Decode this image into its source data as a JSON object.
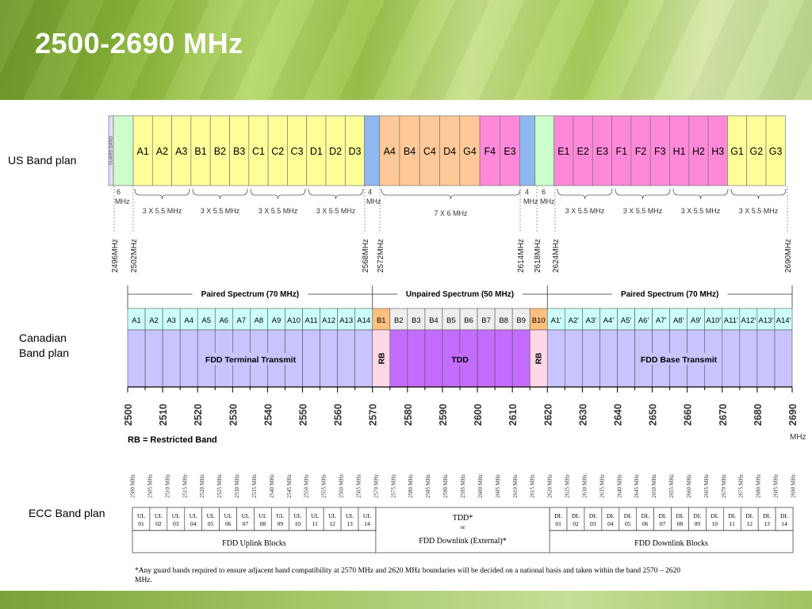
{
  "title": "2500-2690 MHz",
  "labels": {
    "us": "US Band plan",
    "canadian_line1": "Canadian",
    "canadian_line2": "Band plan",
    "ecc": "ECC Band plan"
  },
  "colors": {
    "guard": "#e8d8ff",
    "yellow": "#ffff99",
    "blue": "#8fb8f0",
    "orange": "#ffc896",
    "pink": "#ff88d8",
    "green": "#ccffcc",
    "canadian_header": "#ccfffb",
    "canadian_lavender": "#c8c4ff",
    "canadian_rb": "#ffd8e8",
    "canadian_tdd": "#c46cff",
    "canadian_orange": "#ffc080"
  },
  "us": {
    "guard_label": "GUARD BAND",
    "blocks": [
      {
        "label": "A1",
        "c": "yellow"
      },
      {
        "label": "A2",
        "c": "yellow"
      },
      {
        "label": "A3",
        "c": "yellow"
      },
      {
        "label": "B1",
        "c": "yellow"
      },
      {
        "label": "B2",
        "c": "yellow"
      },
      {
        "label": "B3",
        "c": "yellow"
      },
      {
        "label": "C1",
        "c": "yellow"
      },
      {
        "label": "C2",
        "c": "yellow"
      },
      {
        "label": "C3",
        "c": "yellow"
      },
      {
        "label": "D1",
        "c": "yellow"
      },
      {
        "label": "D2",
        "c": "yellow"
      },
      {
        "label": "D3",
        "c": "yellow"
      },
      {
        "label": "",
        "c": "blue"
      },
      {
        "label": "A4",
        "c": "orange"
      },
      {
        "label": "B4",
        "c": "orange"
      },
      {
        "label": "C4",
        "c": "orange"
      },
      {
        "label": "D4",
        "c": "orange"
      },
      {
        "label": "G4",
        "c": "orange"
      },
      {
        "label": "F4",
        "c": "pink"
      },
      {
        "label": "E3",
        "c": "pink"
      },
      {
        "label": "",
        "c": "blue"
      },
      {
        "label": "",
        "c": "green"
      },
      {
        "label": "E1",
        "c": "pink"
      },
      {
        "label": "E2",
        "c": "pink"
      },
      {
        "label": "E3",
        "c": "pink"
      },
      {
        "label": "F1",
        "c": "pink"
      },
      {
        "label": "F2",
        "c": "pink"
      },
      {
        "label": "F3",
        "c": "pink"
      },
      {
        "label": "H1",
        "c": "pink"
      },
      {
        "label": "H2",
        "c": "pink"
      },
      {
        "label": "H3",
        "c": "pink"
      },
      {
        "label": "G1",
        "c": "yellow"
      },
      {
        "label": "G2",
        "c": "yellow"
      },
      {
        "label": "G3",
        "c": "yellow"
      }
    ],
    "spans": [
      "6\nMHz",
      "3 X 5.5 MHz",
      "3 X 5.5 MHz",
      "3 X 5.5 MHz",
      "3 X 5.5 MHz",
      "4\nMHz",
      "7 X 6 MHz",
      "4\nMHz",
      "6\nMHz",
      "3 X 5.5 MHz",
      "3 X 5.5 MHz",
      "3 X 5.5 MHz",
      "3 X 5.5 MHz"
    ],
    "freqs": [
      "2496MHz",
      "2502MHz",
      "2568MHz",
      "2572MHz",
      "2614MHz",
      "2618MHz",
      "2624MHz",
      "2690MHz"
    ]
  },
  "canada": {
    "sections": [
      "Paired Spectrum (70 MHz)",
      "Unpaired Spectrum (50 MHz)",
      "Paired Spectrum (70 MHz)"
    ],
    "channels": [
      "A1",
      "A2",
      "A3",
      "A4",
      "A5",
      "A6",
      "A7",
      "A8",
      "A9",
      "A10",
      "A11",
      "A12",
      "A13",
      "A14",
      "B1",
      "B2",
      "B3",
      "B4",
      "B5",
      "B6",
      "B7",
      "B8",
      "B9",
      "B10",
      "A1'",
      "A2'",
      "A3'",
      "A4'",
      "A5'",
      "A6'",
      "A7'",
      "A8'",
      "A9'",
      "A10'",
      "A11'",
      "A12'",
      "A13'",
      "A14'"
    ],
    "fdd_terminal": "FDD Terminal Transmit",
    "rb": "RB",
    "tdd": "TDD",
    "fdd_base": "FDD Base Transmit",
    "axis": [
      "2500",
      "2510",
      "2520",
      "2530",
      "2540",
      "2550",
      "2560",
      "2570",
      "2580",
      "2590",
      "2600",
      "2610",
      "2620",
      "2630",
      "2640",
      "2650",
      "2660",
      "2670",
      "2680",
      "2690"
    ],
    "unit": "MHz",
    "rb_note": "RB = Restricted Band"
  },
  "ecc": {
    "freqs": [
      "2500 MHz",
      "2505 MHz",
      "2510 MHz",
      "2515 MHz",
      "2520 MHz",
      "2525 MHz",
      "2530 MHz",
      "2535 MHz",
      "2540 MHz",
      "2545 MHz",
      "2550 MHz",
      "2555 MHz",
      "2560 MHz",
      "2565 MHz",
      "2570 MHz",
      "2575 MHz",
      "2580 MHz",
      "2585 MHz",
      "2590 MHz",
      "2595 MHz",
      "2600 MHz",
      "2605 MHz",
      "2610 MHz",
      "2615 MHz",
      "2620 MHz",
      "2625 MHz",
      "2630 MHz",
      "2635 MHz",
      "2640 MHz",
      "2645 MHz",
      "2650 MHz",
      "2655 MHz",
      "2660 MHz",
      "2665 MHz",
      "2670 MHz",
      "2675 MHz",
      "2680 MHz",
      "2685 MHz",
      "2690 MHz"
    ],
    "ul": [
      [
        "UL",
        "01"
      ],
      [
        "UL",
        "02"
      ],
      [
        "UL",
        "03"
      ],
      [
        "UL",
        "04"
      ],
      [
        "UL",
        "05"
      ],
      [
        "UL",
        "06"
      ],
      [
        "UL",
        "07"
      ],
      [
        "UL",
        "08"
      ],
      [
        "UL",
        "09"
      ],
      [
        "UL",
        "10"
      ],
      [
        "UL",
        "11"
      ],
      [
        "UL",
        "12"
      ],
      [
        "UL",
        "13"
      ],
      [
        "UL",
        "14"
      ]
    ],
    "dl": [
      [
        "DL",
        "01"
      ],
      [
        "DL",
        "02"
      ],
      [
        "DL",
        "03"
      ],
      [
        "DL",
        "04"
      ],
      [
        "DL",
        "05"
      ],
      [
        "DL",
        "06"
      ],
      [
        "DL",
        "07"
      ],
      [
        "DL",
        "08"
      ],
      [
        "DL",
        "09"
      ],
      [
        "DL",
        "10"
      ],
      [
        "DL",
        "11"
      ],
      [
        "DL",
        "12"
      ],
      [
        "DL",
        "13"
      ],
      [
        "DL",
        "14"
      ]
    ],
    "tdd": "TDD*",
    "or": "or",
    "fdd_ext": "FDD Downlink (External)*",
    "uplink_blocks": "FDD Uplink Blocks",
    "downlink_blocks": "FDD Downlink Blocks",
    "footnote_line1": "*Any guard bands required to ensure adjacent band compatibility at 2570 MHz and 2620 MHz boundaries will be decided on a national basis and taken within the band 2570 – 2620",
    "footnote_line2": "MHz."
  }
}
